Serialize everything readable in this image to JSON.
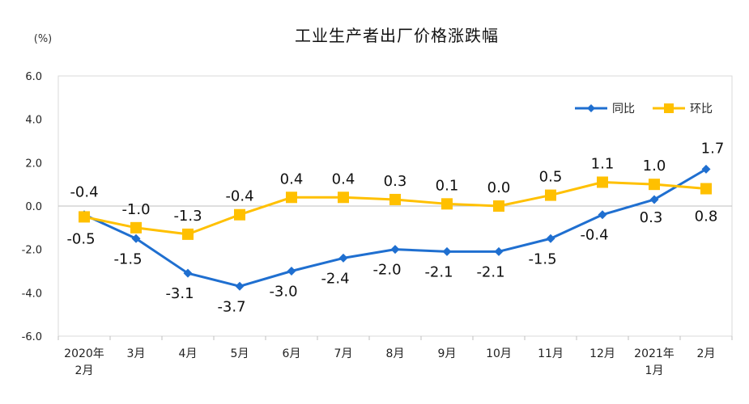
{
  "chart_data": {
    "type": "line",
    "title": "工业生产者出厂价格涨跌幅",
    "unit": "(%)",
    "categories": [
      [
        "2020年",
        "2月"
      ],
      [
        "3月"
      ],
      [
        "4月"
      ],
      [
        "5月"
      ],
      [
        "6月"
      ],
      [
        "7月"
      ],
      [
        "8月"
      ],
      [
        "9月"
      ],
      [
        "10月"
      ],
      [
        "11月"
      ],
      [
        "12月"
      ],
      [
        "2021年",
        "1月"
      ],
      [
        "2月"
      ]
    ],
    "y_ticks": [
      "6.0",
      "4.0",
      "2.0",
      "0.0",
      "-2.0",
      "-4.0",
      "-6.0"
    ],
    "ylim": [
      -6,
      6
    ],
    "legend_position": "top-right",
    "series": [
      {
        "name": "同比",
        "color": "#1f6fd0",
        "marker": "diamond",
        "values": [
          -0.4,
          -1.5,
          -3.1,
          -3.7,
          -3.0,
          -2.4,
          -2.0,
          -2.1,
          -2.1,
          -1.5,
          -0.4,
          0.3,
          1.7
        ],
        "labels": [
          "-0.4",
          "-1.5",
          "-3.1",
          "-3.7",
          "-3.0",
          "-2.4",
          "-2.0",
          "-2.1",
          "-2.1",
          "-1.5",
          "-0.4",
          "0.3",
          "1.7"
        ]
      },
      {
        "name": "环比",
        "color": "#ffc000",
        "marker": "square",
        "values": [
          -0.5,
          -1.0,
          -1.3,
          -0.4,
          0.4,
          0.4,
          0.3,
          0.1,
          0.0,
          0.5,
          1.1,
          1.0,
          0.8
        ],
        "labels": [
          "-0.5",
          "-1.0",
          "-1.3",
          "-0.4",
          "0.4",
          "0.4",
          "0.3",
          "0.1",
          "0.0",
          "0.5",
          "1.1",
          "1.0",
          "0.8"
        ]
      }
    ]
  }
}
